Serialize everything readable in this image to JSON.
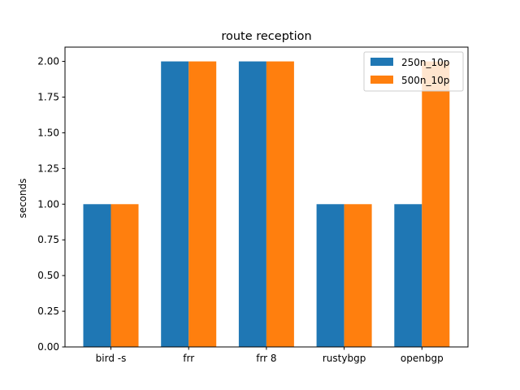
{
  "chart_data": {
    "type": "bar",
    "title": "route reception",
    "xlabel": "",
    "ylabel": "seconds",
    "ylim": [
      0,
      2.1
    ],
    "yticks": [
      "0.00",
      "0.25",
      "0.50",
      "0.75",
      "1.00",
      "1.25",
      "1.50",
      "1.75",
      "2.00"
    ],
    "categories": [
      "bird -s",
      "frr",
      "frr 8",
      "rustybgp",
      "openbgp"
    ],
    "series": [
      {
        "name": "250n_10p",
        "color": "#1f77b4",
        "values": [
          1,
          2,
          2,
          1,
          1
        ]
      },
      {
        "name": "500n_10p",
        "color": "#ff7f0e",
        "values": [
          1,
          2,
          2,
          1,
          2
        ]
      }
    ],
    "legend_position": "top-right",
    "grid": false
  }
}
